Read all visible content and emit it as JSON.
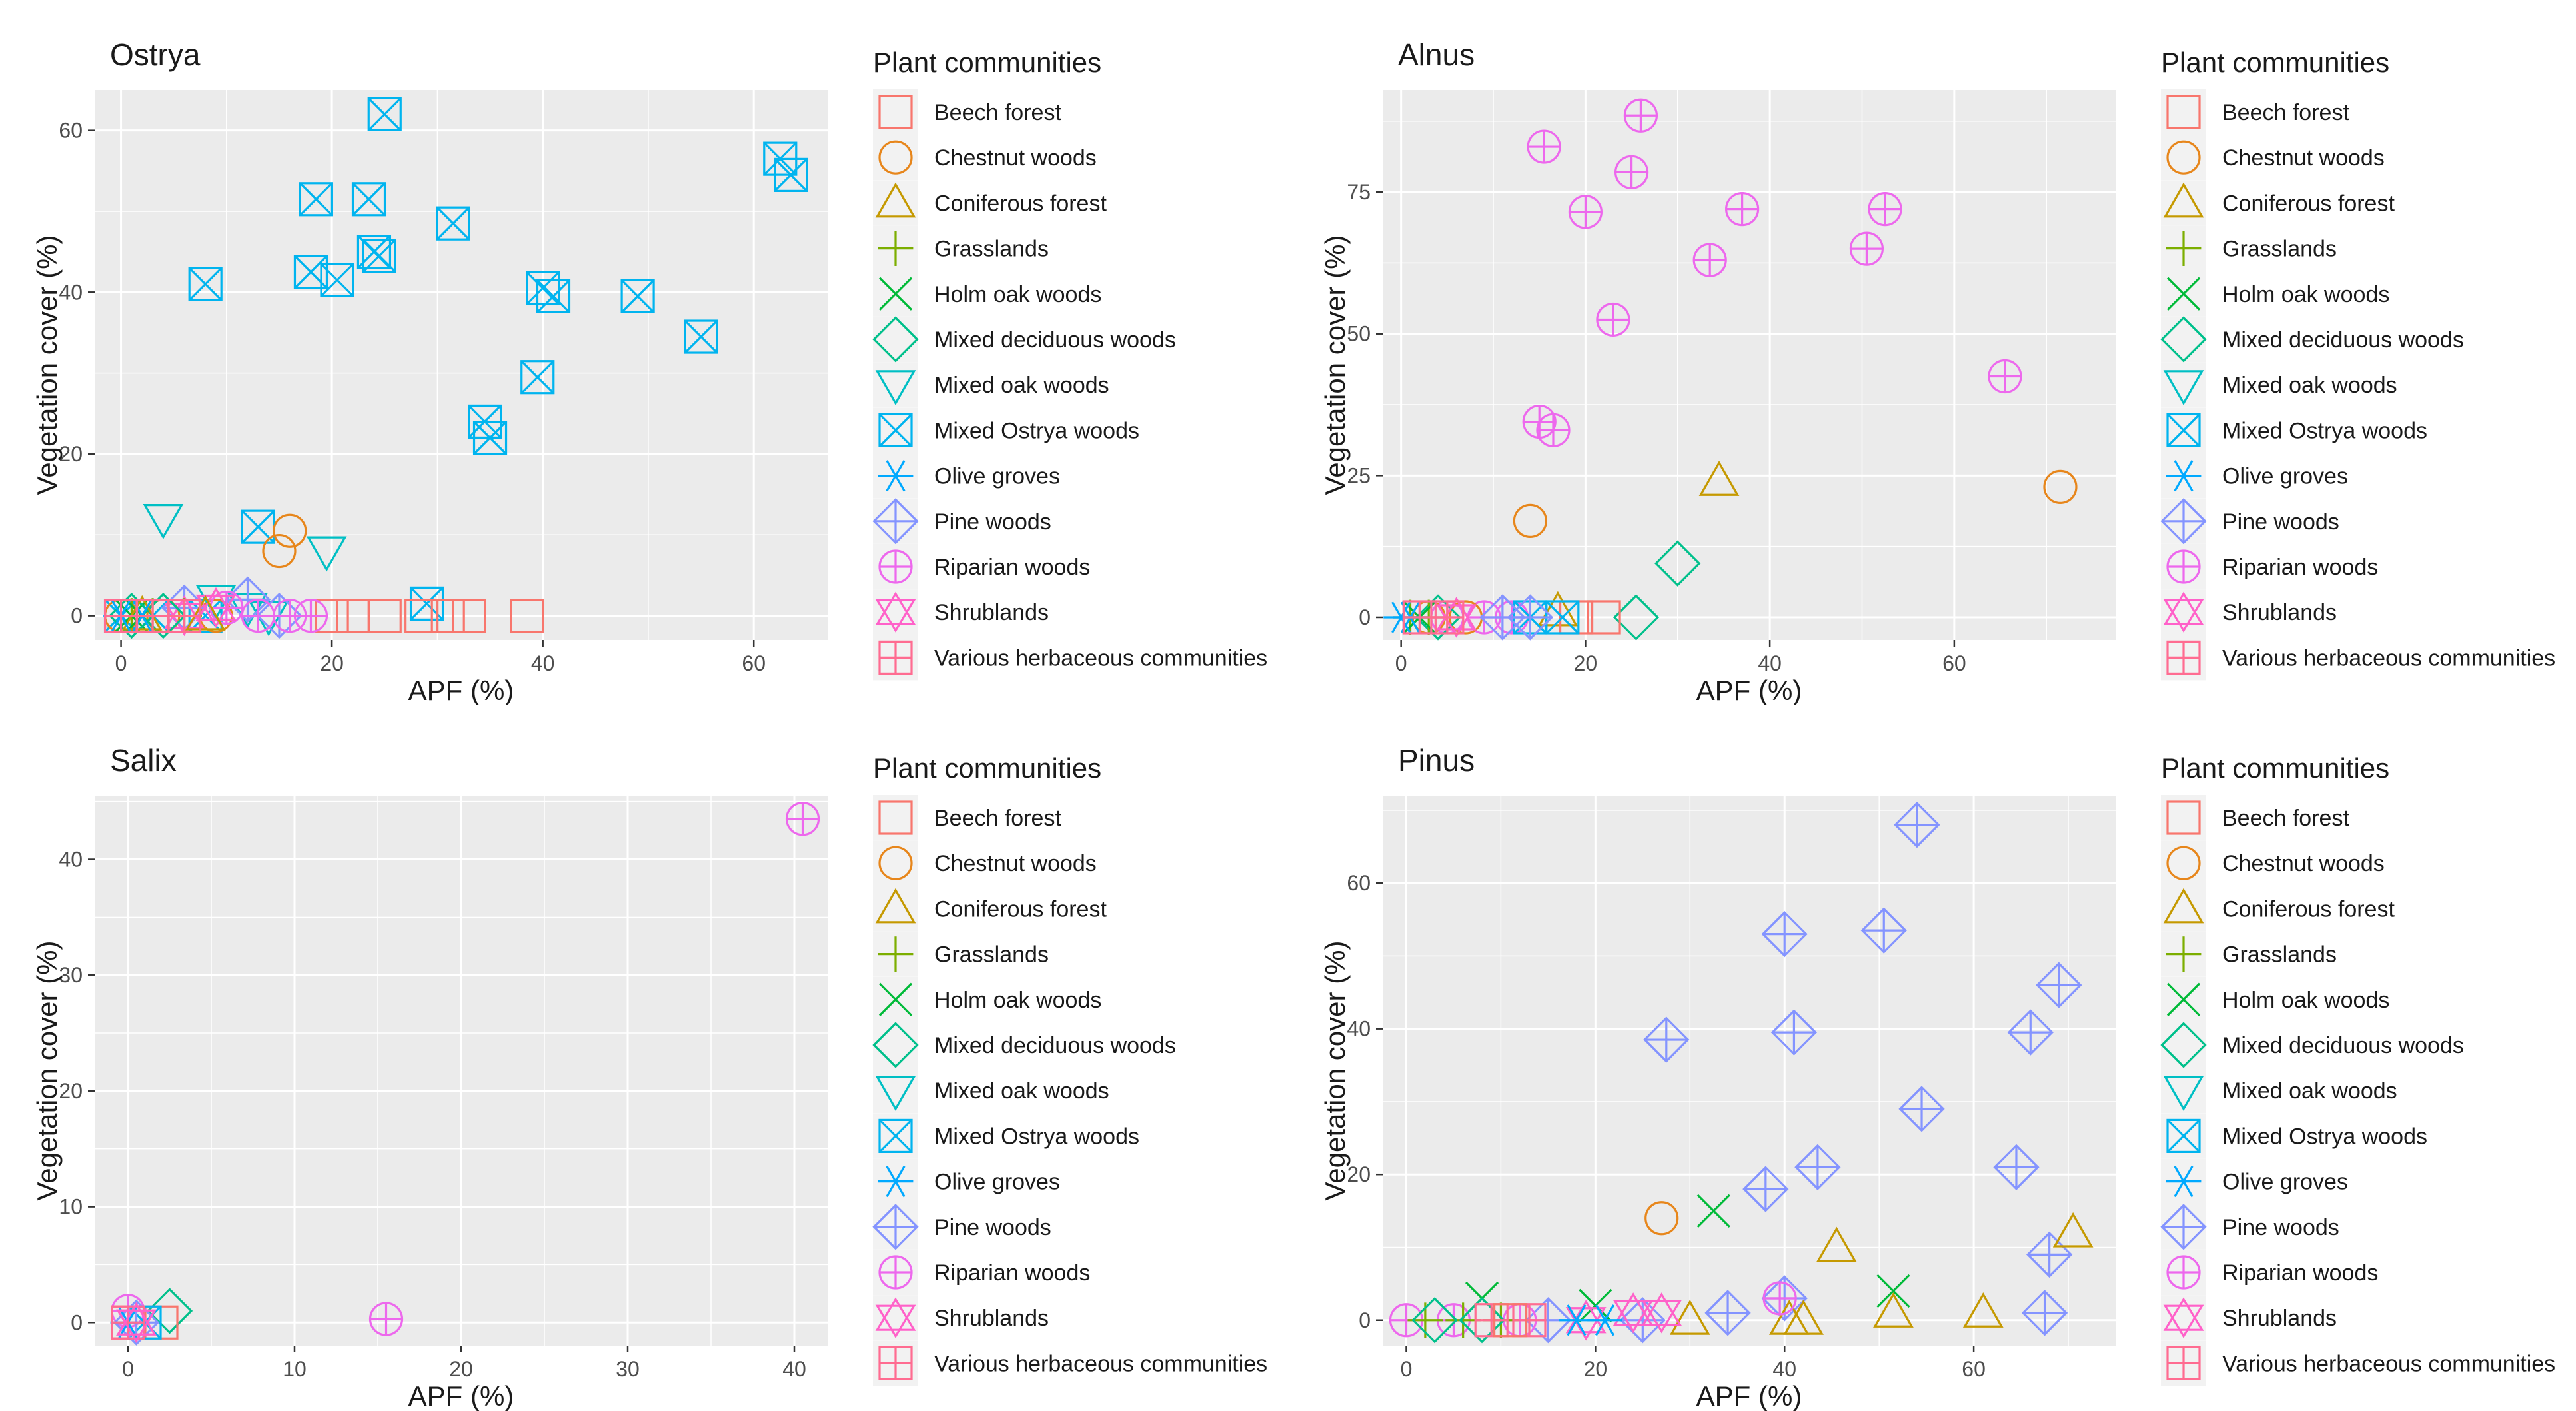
{
  "palette": {
    "Beech forest": "#F8766D",
    "Chestnut woods": "#E7861B",
    "Coniferous forest": "#C59900",
    "Grasslands": "#7CAE00",
    "Holm oak woods": "#00BA38",
    "Mixed deciduous woods": "#00C08B",
    "Mixed oak woods": "#00BFC4",
    "Mixed Ostrya woods": "#00B4EF",
    "Olive groves": "#00A9FF",
    "Pine woods": "#8494FF",
    "Riparian woods": "#ED68ED",
    "Shrublands": "#FF61C9",
    "Various herbaceous communities": "#FF6C91"
  },
  "shapes": {
    "Beech forest": "square",
    "Chestnut woods": "circle",
    "Coniferous forest": "triangle",
    "Grasslands": "plus",
    "Holm oak woods": "cross",
    "Mixed deciduous woods": "diamond",
    "Mixed oak woods": "triangle-down",
    "Mixed Ostrya woods": "square-cross",
    "Olive groves": "asterisk",
    "Pine woods": "diamond-plus",
    "Riparian woods": "circle-plus",
    "Shrublands": "star-triangles",
    "Various herbaceous communities": "square-plus"
  },
  "legend": {
    "title": "Plant communities",
    "items": [
      "Beech forest",
      "Chestnut woods",
      "Coniferous forest",
      "Grasslands",
      "Holm oak woods",
      "Mixed deciduous woods",
      "Mixed oak woods",
      "Mixed Ostrya woods",
      "Olive groves",
      "Pine woods",
      "Riparian woods",
      "Shrublands",
      "Various herbaceous communities"
    ]
  },
  "chart_data": [
    {
      "type": "scatter",
      "title": "Ostrya",
      "xlabel": "APF (%)",
      "ylabel": "Vegetation cover (%)",
      "xlim": [
        -2.5,
        67
      ],
      "ylim": [
        -3,
        65
      ],
      "xticks": [
        0,
        20,
        40,
        60
      ],
      "yticks": [
        0,
        20,
        40,
        60
      ],
      "series": [
        {
          "name": "Mixed Ostrya woods",
          "points": [
            [
              25,
              62
            ],
            [
              62.5,
              56.5
            ],
            [
              63.5,
              54.5
            ],
            [
              18.5,
              51.5
            ],
            [
              23.5,
              51.5
            ],
            [
              31.5,
              48.5
            ],
            [
              24,
              45
            ],
            [
              24.5,
              44.5
            ],
            [
              18,
              42.5
            ],
            [
              20.5,
              41.5
            ],
            [
              8,
              41
            ],
            [
              40,
              40.5
            ],
            [
              41,
              39.5
            ],
            [
              49,
              39.5
            ],
            [
              55,
              34.5
            ],
            [
              39.5,
              29.5
            ],
            [
              34.5,
              24
            ],
            [
              35,
              22
            ],
            [
              13,
              11
            ],
            [
              29,
              1.5
            ],
            [
              0,
              0
            ],
            [
              3,
              0
            ],
            [
              8,
              0
            ]
          ]
        },
        {
          "name": "Chestnut woods",
          "points": [
            [
              16,
              10.5
            ],
            [
              15,
              8
            ],
            [
              0,
              0
            ],
            [
              4,
              0
            ],
            [
              9,
              0
            ]
          ]
        },
        {
          "name": "Mixed oak woods",
          "points": [
            [
              4,
              12
            ],
            [
              19.5,
              8
            ],
            [
              9,
              2
            ],
            [
              12,
              1
            ],
            [
              14,
              0
            ]
          ]
        },
        {
          "name": "Pine woods",
          "points": [
            [
              12,
              2
            ],
            [
              6,
              1
            ],
            [
              15,
              0
            ]
          ]
        },
        {
          "name": "Beech forest",
          "points": [
            [
              38.5,
              0
            ],
            [
              33,
              0
            ],
            [
              31,
              0
            ],
            [
              28.5,
              0
            ],
            [
              25,
              0
            ],
            [
              22,
              0
            ],
            [
              20,
              0
            ]
          ]
        },
        {
          "name": "Riparian woods",
          "points": [
            [
              10,
              1
            ],
            [
              13,
              0
            ],
            [
              16,
              0
            ],
            [
              18,
              0
            ]
          ]
        },
        {
          "name": "Shrublands",
          "points": [
            [
              9,
              1
            ],
            [
              6,
              0
            ]
          ]
        },
        {
          "name": "Grasslands",
          "points": [
            [
              1,
              0
            ],
            [
              3,
              0
            ],
            [
              6,
              0
            ]
          ]
        },
        {
          "name": "Holm oak woods",
          "points": [
            [
              1,
              0
            ],
            [
              2,
              0
            ]
          ]
        },
        {
          "name": "Mixed deciduous woods",
          "points": [
            [
              1,
              0
            ],
            [
              4,
              0
            ]
          ]
        },
        {
          "name": "Coniferous forest",
          "points": [
            [
              2,
              0
            ],
            [
              8,
              0
            ]
          ]
        },
        {
          "name": "Olive groves",
          "points": [
            [
              0,
              0
            ],
            [
              2,
              0
            ]
          ]
        },
        {
          "name": "Various herbaceous communities",
          "points": [
            [
              0,
              0
            ],
            [
              3,
              0
            ],
            [
              6,
              0
            ]
          ]
        }
      ]
    },
    {
      "type": "scatter",
      "title": "Alnus",
      "xlabel": "APF (%)",
      "ylabel": "Vegetation cover (%)",
      "xlim": [
        -2,
        77.5
      ],
      "ylim": [
        -4,
        93
      ],
      "xticks": [
        0,
        20,
        40,
        60
      ],
      "yticks": [
        0,
        25,
        50,
        75
      ],
      "series": [
        {
          "name": "Riparian woods",
          "points": [
            [
              26,
              88.5
            ],
            [
              15.5,
              83
            ],
            [
              25,
              78.5
            ],
            [
              20,
              71.5
            ],
            [
              37,
              72
            ],
            [
              52.5,
              72
            ],
            [
              50.5,
              65
            ],
            [
              33.5,
              63
            ],
            [
              23,
              52.5
            ],
            [
              65.5,
              42.5
            ],
            [
              15,
              34.5
            ],
            [
              16.5,
              33
            ],
            [
              5,
              0
            ],
            [
              9,
              0
            ],
            [
              12,
              0
            ]
          ]
        },
        {
          "name": "Chestnut woods",
          "points": [
            [
              71.5,
              23
            ],
            [
              14,
              17
            ],
            [
              3,
              0
            ],
            [
              7,
              0
            ]
          ]
        },
        {
          "name": "Coniferous forest",
          "points": [
            [
              34.5,
              24
            ],
            [
              17,
              1
            ]
          ]
        },
        {
          "name": "Mixed deciduous woods",
          "points": [
            [
              30,
              9.5
            ],
            [
              25.5,
              0
            ],
            [
              4,
              0
            ]
          ]
        },
        {
          "name": "Beech forest",
          "points": [
            [
              22,
              0
            ],
            [
              19,
              0
            ]
          ]
        },
        {
          "name": "Mixed Ostrya woods",
          "points": [
            [
              17.5,
              0
            ],
            [
              14,
              0
            ]
          ]
        },
        {
          "name": "Pine woods",
          "points": [
            [
              14,
              0
            ],
            [
              11,
              0
            ]
          ]
        },
        {
          "name": "Grasslands",
          "points": [
            [
              1,
              0
            ],
            [
              3,
              0
            ]
          ]
        },
        {
          "name": "Holm oak woods",
          "points": [
            [
              2,
              0
            ]
          ]
        },
        {
          "name": "Olive groves",
          "points": [
            [
              0,
              0
            ],
            [
              1,
              0
            ]
          ]
        },
        {
          "name": "Shrublands",
          "points": [
            [
              6,
              0
            ]
          ]
        },
        {
          "name": "Various herbaceous communities",
          "points": [
            [
              2,
              0
            ],
            [
              5,
              0
            ]
          ]
        }
      ]
    },
    {
      "type": "scatter",
      "title": "Salix",
      "xlabel": "APF (%)",
      "ylabel": "Vegetation cover (%)",
      "xlim": [
        -2,
        42
      ],
      "ylim": [
        -2,
        45.5
      ],
      "xticks": [
        0,
        10,
        20,
        30,
        40
      ],
      "yticks": [
        0,
        10,
        20,
        30,
        40
      ],
      "series": [
        {
          "name": "Riparian woods",
          "points": [
            [
              40.5,
              43.5
            ],
            [
              15.5,
              0.3
            ],
            [
              0,
              1
            ]
          ]
        },
        {
          "name": "Mixed deciduous woods",
          "points": [
            [
              2.5,
              1
            ]
          ]
        },
        {
          "name": "Beech forest",
          "points": [
            [
              2,
              0
            ],
            [
              0,
              0
            ]
          ]
        },
        {
          "name": "Mixed Ostrya woods",
          "points": [
            [
              1,
              0
            ]
          ]
        },
        {
          "name": "Pine woods",
          "points": [
            [
              0.5,
              0
            ]
          ]
        },
        {
          "name": "Olive groves",
          "points": [
            [
              0,
              0
            ]
          ]
        },
        {
          "name": "Various herbaceous communities",
          "points": [
            [
              0,
              0
            ]
          ]
        },
        {
          "name": "Shrublands",
          "points": [
            [
              0.5,
              0
            ]
          ]
        }
      ]
    },
    {
      "type": "scatter",
      "title": "Pinus",
      "xlabel": "APF (%)",
      "ylabel": "Vegetation cover (%)",
      "xlim": [
        -2.5,
        75
      ],
      "ylim": [
        -3.5,
        72
      ],
      "xticks": [
        0,
        20,
        40,
        60
      ],
      "yticks": [
        0,
        20,
        40,
        60
      ],
      "series": [
        {
          "name": "Pine woods",
          "points": [
            [
              54,
              68
            ],
            [
              40,
              53
            ],
            [
              50.5,
              53.5
            ],
            [
              69,
              46
            ],
            [
              41,
              39.5
            ],
            [
              66,
              39.5
            ],
            [
              27.5,
              38.5
            ],
            [
              54.5,
              29
            ],
            [
              43.5,
              21
            ],
            [
              64.5,
              21
            ],
            [
              38,
              18
            ],
            [
              68,
              9
            ],
            [
              67.5,
              1
            ],
            [
              40,
              3
            ],
            [
              34,
              1
            ],
            [
              25,
              0
            ],
            [
              15,
              0
            ]
          ]
        },
        {
          "name": "Chestnut woods",
          "points": [
            [
              27,
              14
            ]
          ]
        },
        {
          "name": "Holm oak woods",
          "points": [
            [
              32.5,
              15
            ],
            [
              51.5,
              4
            ],
            [
              8,
              3
            ],
            [
              20,
              2
            ]
          ]
        },
        {
          "name": "Coniferous forest",
          "points": [
            [
              70.5,
              12
            ],
            [
              45.5,
              10
            ],
            [
              51.5,
              1
            ],
            [
              61,
              1
            ],
            [
              40.5,
              0
            ],
            [
              42,
              0
            ],
            [
              30,
              0
            ]
          ]
        },
        {
          "name": "Riparian woods",
          "points": [
            [
              39.5,
              3
            ],
            [
              0,
              0
            ],
            [
              5,
              0
            ],
            [
              12,
              0
            ]
          ]
        },
        {
          "name": "Shrublands",
          "points": [
            [
              24,
              1
            ],
            [
              27,
              1
            ],
            [
              19,
              0
            ]
          ]
        },
        {
          "name": "Grasslands",
          "points": [
            [
              2,
              0
            ],
            [
              6,
              0
            ],
            [
              10,
              0
            ]
          ]
        },
        {
          "name": "Mixed deciduous woods",
          "points": [
            [
              3,
              0
            ],
            [
              8,
              0
            ]
          ]
        },
        {
          "name": "Olive groves",
          "points": [
            [
              18,
              0
            ],
            [
              21,
              0
            ]
          ]
        },
        {
          "name": "Various herbaceous communities",
          "points": [
            [
              9,
              0
            ],
            [
              13,
              0
            ]
          ]
        },
        {
          "name": "Beech forest",
          "points": [
            [
              11,
              0
            ]
          ]
        }
      ]
    }
  ]
}
